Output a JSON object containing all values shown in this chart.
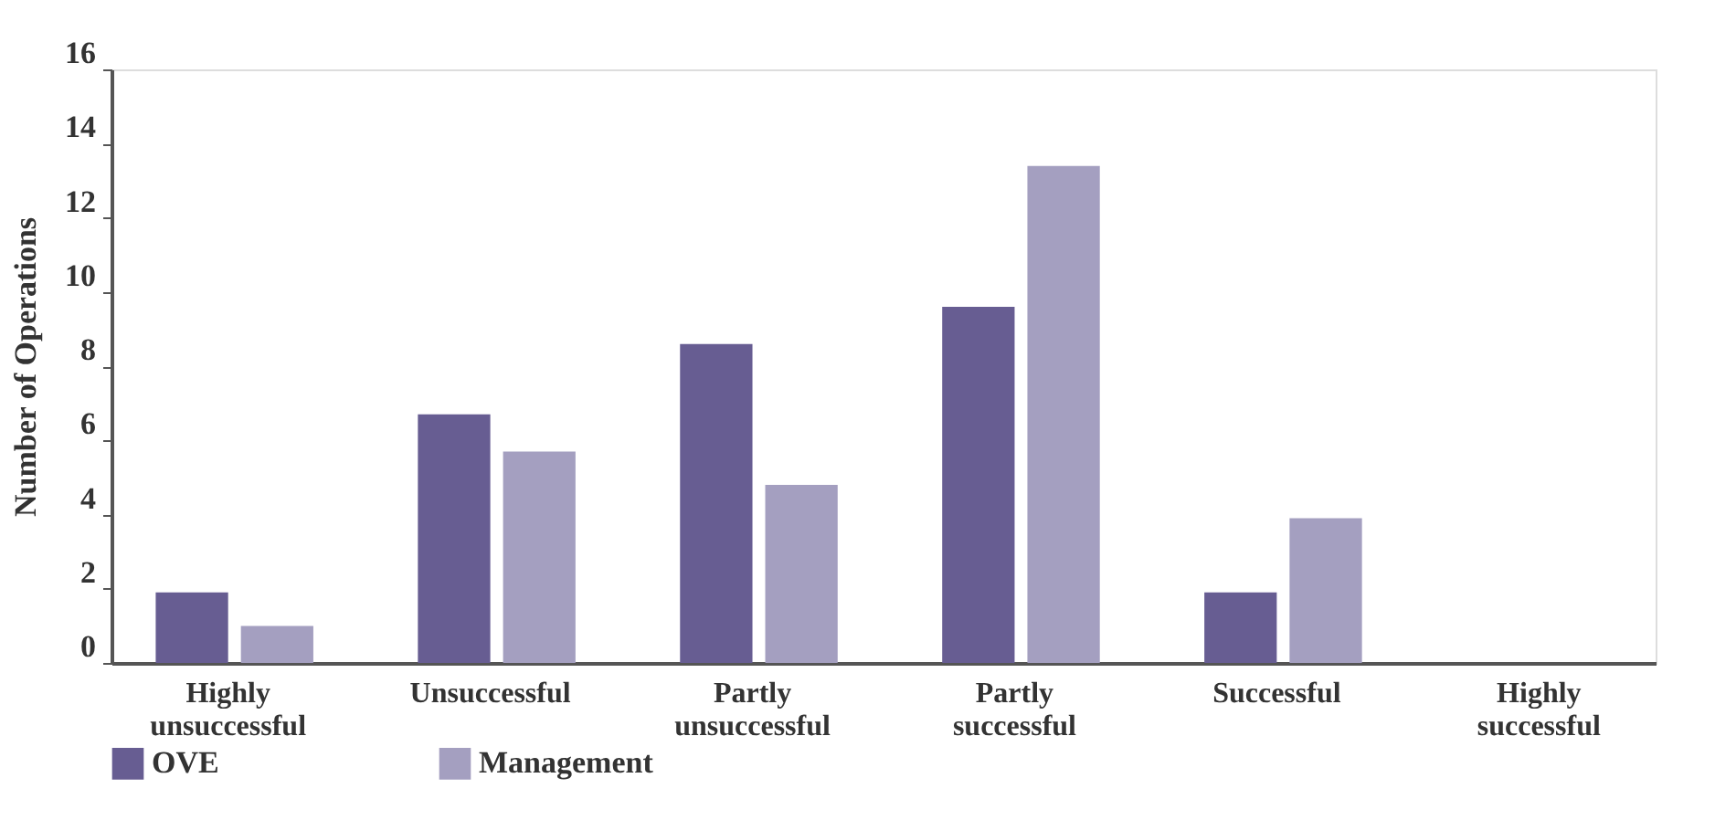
{
  "chart_data": {
    "type": "bar",
    "ylabel": "Number of Operations",
    "categories": [
      "Highly unsuccessful",
      "Unsuccessful",
      "Partly unsuccessful",
      "Partly successful",
      "Successful",
      "Highly successful"
    ],
    "series": [
      {
        "name": "OVE",
        "color": "#675d92",
        "values": [
          1.9,
          6.7,
          8.6,
          9.6,
          1.9,
          0
        ]
      },
      {
        "name": "Management",
        "color": "#a49fc0",
        "values": [
          1.0,
          5.7,
          4.8,
          13.4,
          3.9,
          0
        ]
      }
    ],
    "ylim": [
      0,
      16
    ],
    "yticks": [
      0,
      2,
      4,
      6,
      8,
      10,
      12,
      14,
      16
    ],
    "grid": false,
    "legend": "bottom"
  }
}
